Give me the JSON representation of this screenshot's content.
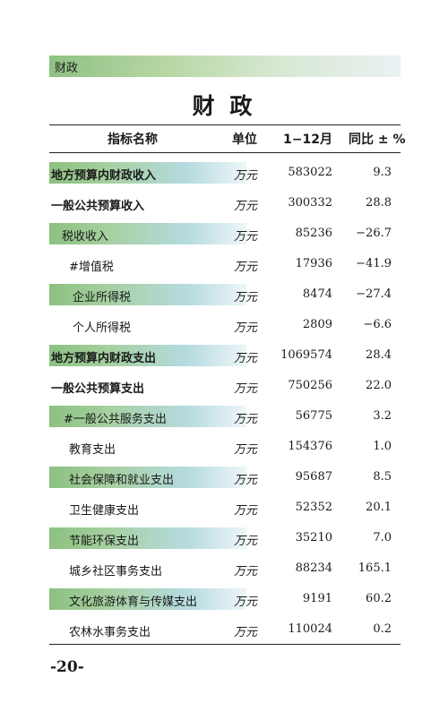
{
  "header": {
    "section": "财政"
  },
  "title": "财 政",
  "columns": {
    "name": "指标名称",
    "unit": "单位",
    "period": "1−12月",
    "yoy": "同比 ± %"
  },
  "rows": [
    {
      "name": "地方预算内财政收入",
      "unit": "万元",
      "value": "583022",
      "yoy": "9.3"
    },
    {
      "name": "一般公共预算收入",
      "unit": "万元",
      "value": "300332",
      "yoy": "28.8"
    },
    {
      "name": "税收收入",
      "unit": "万元",
      "value": "85236",
      "yoy": "−26.7"
    },
    {
      "name": "#增值税",
      "unit": "万元",
      "value": "17936",
      "yoy": "−41.9"
    },
    {
      "name": "企业所得税",
      "unit": "万元",
      "value": "8474",
      "yoy": "−27.4"
    },
    {
      "name": "个人所得税",
      "unit": "万元",
      "value": "2809",
      "yoy": "−6.6"
    },
    {
      "name": "地方预算内财政支出",
      "unit": "万元",
      "value": "1069574",
      "yoy": "28.4"
    },
    {
      "name": "一般公共预算支出",
      "unit": "万元",
      "value": "750256",
      "yoy": "22.0"
    },
    {
      "name": "#一般公共服务支出",
      "unit": "万元",
      "value": "56775",
      "yoy": "3.2"
    },
    {
      "name": "教育支出",
      "unit": "万元",
      "value": "154376",
      "yoy": "1.0"
    },
    {
      "name": "社会保障和就业支出",
      "unit": "万元",
      "value": "95687",
      "yoy": "8.5"
    },
    {
      "name": "卫生健康支出",
      "unit": "万元",
      "value": "52352",
      "yoy": "20.1"
    },
    {
      "name": "节能环保支出",
      "unit": "万元",
      "value": "35210",
      "yoy": "7.0"
    },
    {
      "name": "城乡社区事务支出",
      "unit": "万元",
      "value": "88234",
      "yoy": "165.1"
    },
    {
      "name": "文化旅游体育与传媒支出",
      "unit": "万元",
      "value": "9191",
      "yoy": "60.2"
    },
    {
      "name": "农林水事务支出",
      "unit": "万元",
      "value": "110024",
      "yoy": "0.2"
    }
  ],
  "page_number": "-20-"
}
